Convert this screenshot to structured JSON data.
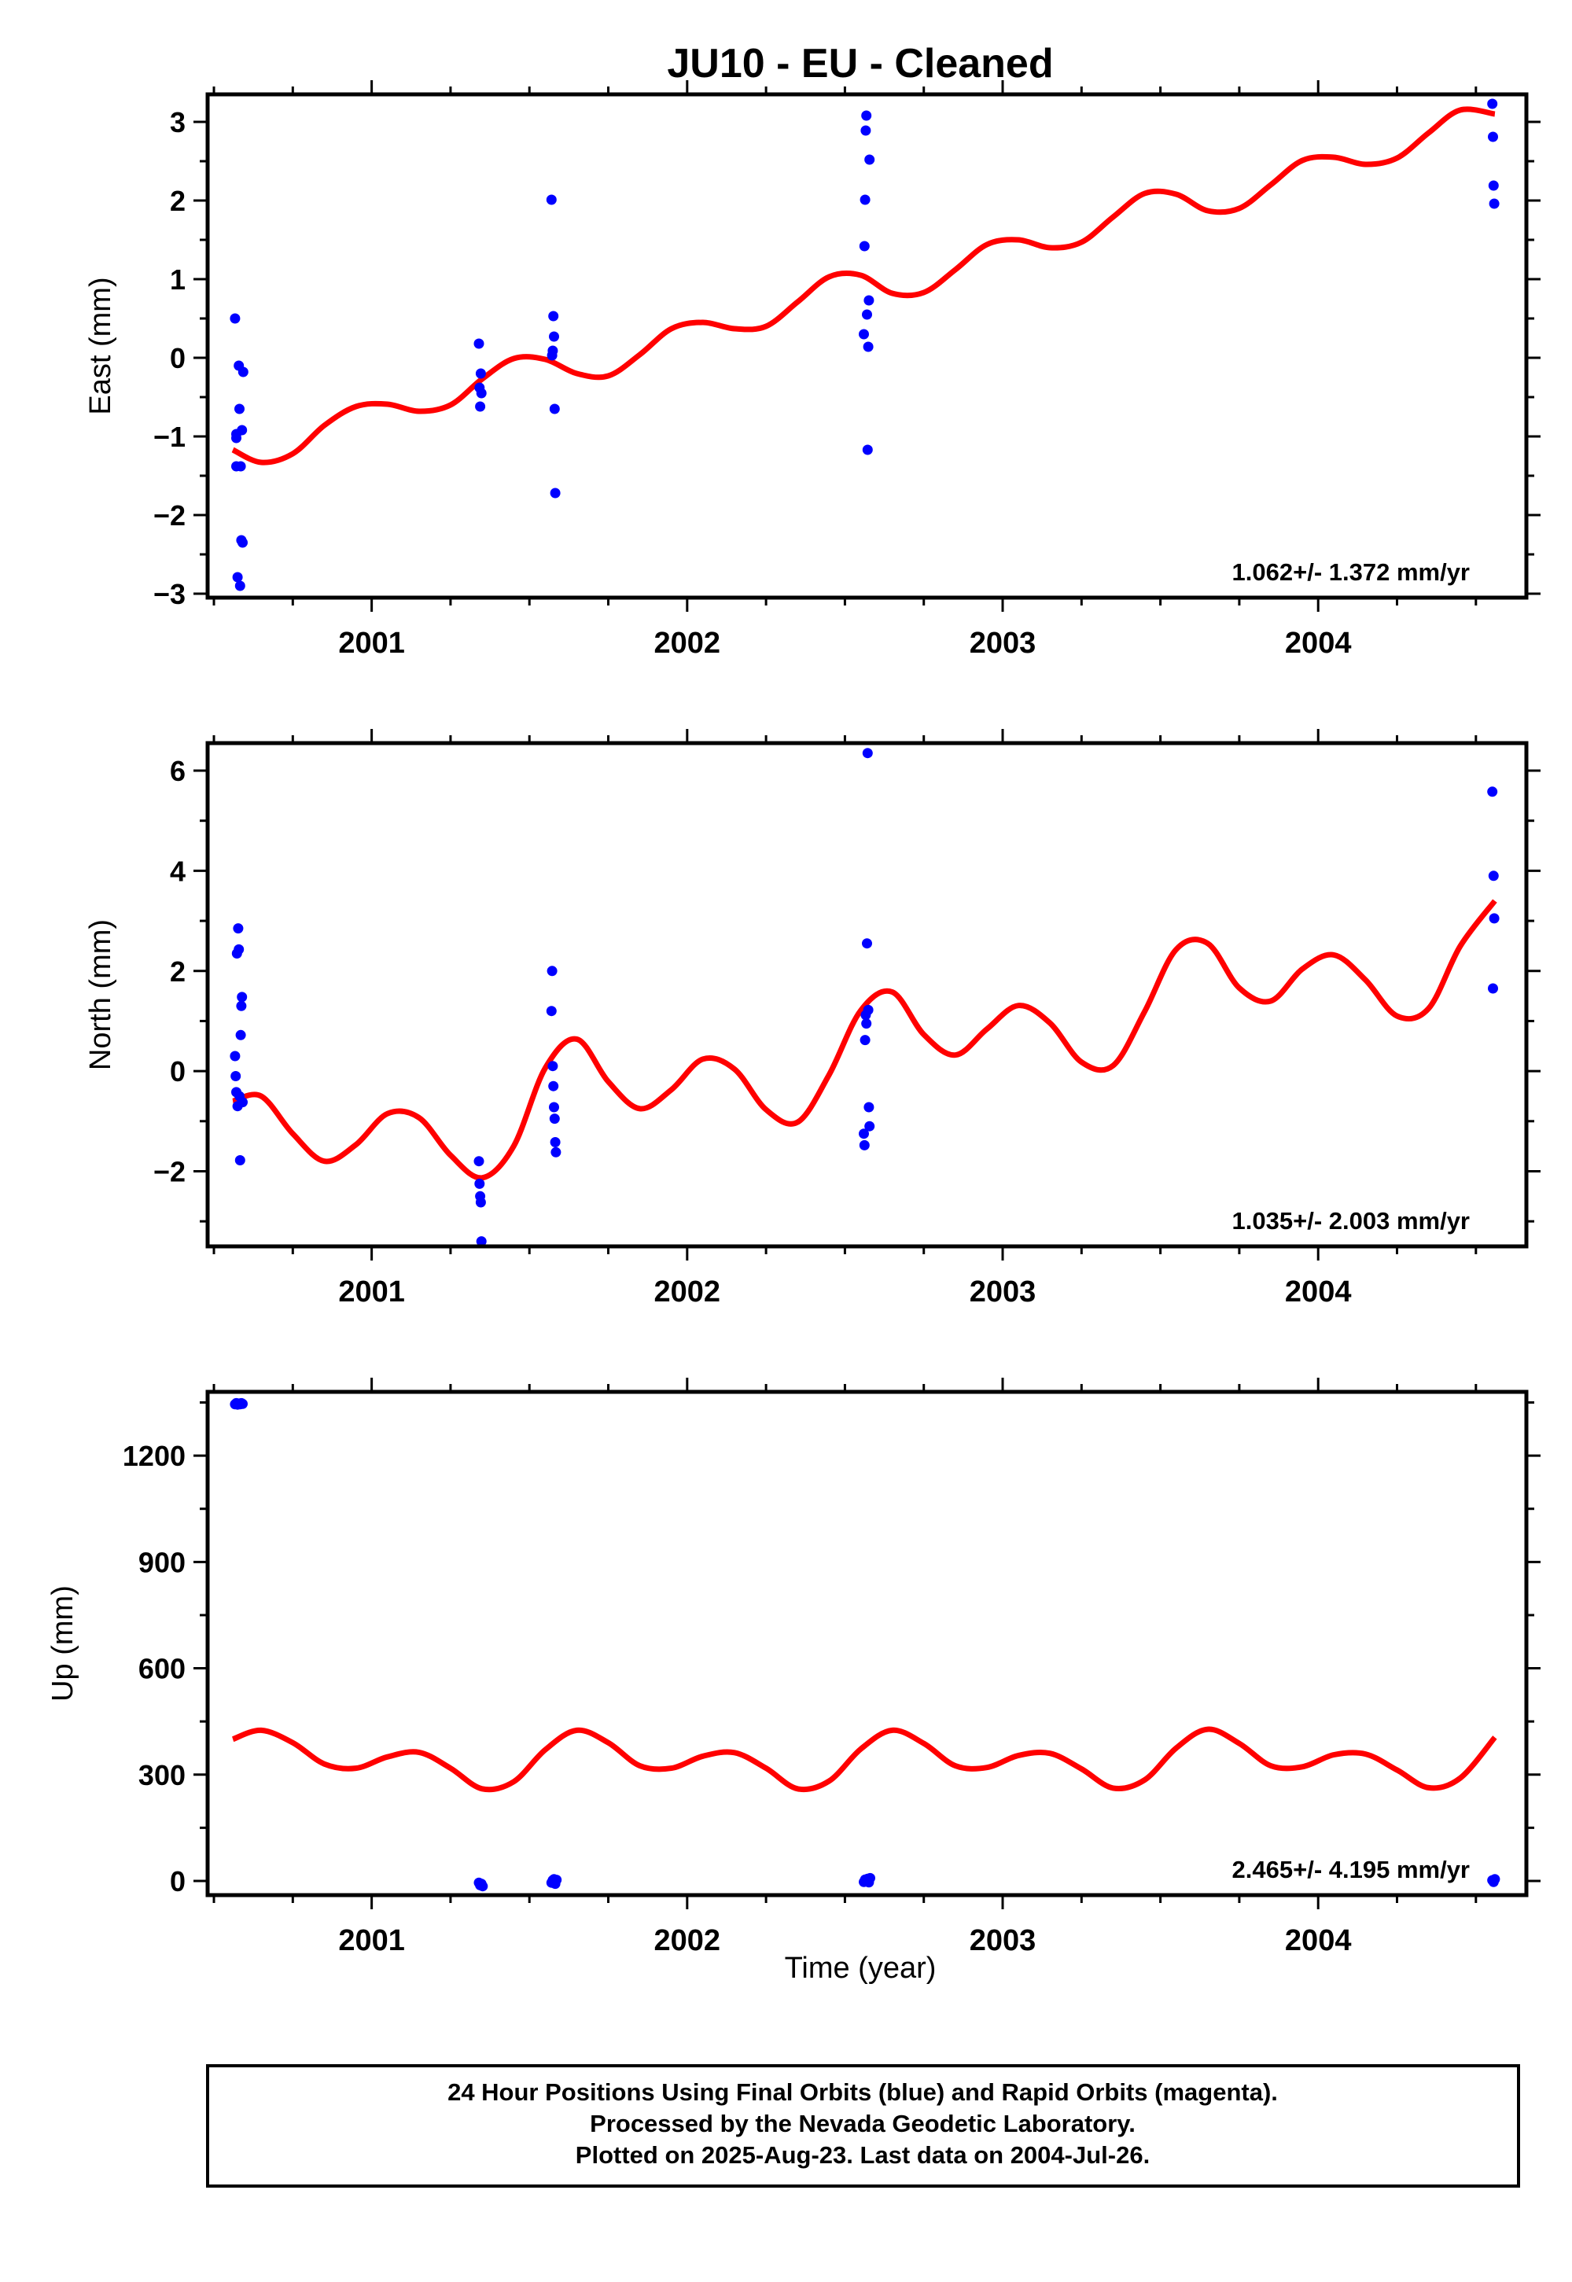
{
  "chart_data": {
    "type": "scatter",
    "title": "JU10  - EU - Cleaned",
    "xlabel": "Time (year)",
    "x_ticks": [
      2001,
      2002,
      2003,
      2004
    ],
    "xlim": [
      2000.48,
      2004.66
    ],
    "colors": {
      "points": "#0000ff",
      "model": "#ff0000",
      "frame": "#000000"
    },
    "grid": false,
    "panels": [
      {
        "ylabel": "East (mm)",
        "ylim": [
          -3.05,
          3.35
        ],
        "y_ticks": [
          -3,
          -2,
          -1,
          0,
          1,
          2,
          3
        ],
        "rate": "1.062+/- 1.372 mm/yr",
        "points": [
          [
            2000.567,
            0.5
          ],
          [
            2000.571,
            -0.97
          ],
          [
            2000.571,
            -1.02
          ],
          [
            2000.571,
            -1.38
          ],
          [
            2000.575,
            -2.79
          ],
          [
            2000.579,
            -0.1
          ],
          [
            2000.581,
            -0.65
          ],
          [
            2000.583,
            -2.9
          ],
          [
            2000.585,
            -1.38
          ],
          [
            2000.587,
            -2.32
          ],
          [
            2000.589,
            -0.92
          ],
          [
            2000.591,
            -2.35
          ],
          [
            2000.593,
            -0.18
          ],
          [
            2001.34,
            0.18
          ],
          [
            2001.342,
            -0.38
          ],
          [
            2001.344,
            -0.62
          ],
          [
            2001.346,
            -0.2
          ],
          [
            2001.348,
            -0.45
          ],
          [
            2001.57,
            2.01
          ],
          [
            2001.572,
            0.03
          ],
          [
            2001.574,
            0.09
          ],
          [
            2001.576,
            0.53
          ],
          [
            2001.578,
            0.27
          ],
          [
            2001.58,
            -0.65
          ],
          [
            2001.582,
            -1.72
          ],
          [
            2002.56,
            0.3
          ],
          [
            2002.562,
            1.42
          ],
          [
            2002.564,
            2.01
          ],
          [
            2002.566,
            2.89
          ],
          [
            2002.568,
            3.08
          ],
          [
            2002.57,
            0.55
          ],
          [
            2002.572,
            -1.17
          ],
          [
            2002.574,
            0.14
          ],
          [
            2002.576,
            0.73
          ],
          [
            2002.578,
            2.52
          ],
          [
            2004.552,
            3.23
          ],
          [
            2004.554,
            2.81
          ],
          [
            2004.556,
            2.19
          ],
          [
            2004.558,
            1.96
          ]
        ],
        "model": [
          [
            2000.56,
            -1.17
          ],
          [
            2000.65,
            -1.33
          ],
          [
            2000.75,
            -1.22
          ],
          [
            2000.85,
            -0.86
          ],
          [
            2000.95,
            -0.62
          ],
          [
            2001.05,
            -0.59
          ],
          [
            2001.15,
            -0.68
          ],
          [
            2001.25,
            -0.6
          ],
          [
            2001.35,
            -0.27
          ],
          [
            2001.45,
            -0.01
          ],
          [
            2001.55,
            -0.02
          ],
          [
            2001.65,
            -0.2
          ],
          [
            2001.75,
            -0.23
          ],
          [
            2001.85,
            0.04
          ],
          [
            2001.95,
            0.37
          ],
          [
            2002.05,
            0.45
          ],
          [
            2002.15,
            0.37
          ],
          [
            2002.25,
            0.4
          ],
          [
            2002.35,
            0.71
          ],
          [
            2002.45,
            1.03
          ],
          [
            2002.55,
            1.05
          ],
          [
            2002.65,
            0.82
          ],
          [
            2002.75,
            0.83
          ],
          [
            2002.85,
            1.12
          ],
          [
            2002.95,
            1.44
          ],
          [
            2003.05,
            1.5
          ],
          [
            2003.15,
            1.4
          ],
          [
            2003.25,
            1.47
          ],
          [
            2003.35,
            1.79
          ],
          [
            2003.45,
            2.09
          ],
          [
            2003.55,
            2.08
          ],
          [
            2003.65,
            1.87
          ],
          [
            2003.75,
            1.9
          ],
          [
            2003.85,
            2.2
          ],
          [
            2003.95,
            2.51
          ],
          [
            2004.05,
            2.55
          ],
          [
            2004.15,
            2.46
          ],
          [
            2004.25,
            2.54
          ],
          [
            2004.35,
            2.86
          ],
          [
            2004.45,
            3.15
          ],
          [
            2004.56,
            3.1
          ]
        ]
      },
      {
        "ylabel": "North (mm)",
        "ylim": [
          -3.5,
          6.55
        ],
        "y_ticks": [
          -2,
          0,
          2,
          4,
          6
        ],
        "rate": "1.035+/- 2.003 mm/yr",
        "points": [
          [
            2000.567,
            0.3
          ],
          [
            2000.569,
            -0.1
          ],
          [
            2000.571,
            -0.42
          ],
          [
            2000.573,
            2.35
          ],
          [
            2000.575,
            -0.7
          ],
          [
            2000.577,
            2.85
          ],
          [
            2000.579,
            2.43
          ],
          [
            2000.581,
            -0.5
          ],
          [
            2000.583,
            -1.78
          ],
          [
            2000.585,
            0.72
          ],
          [
            2000.587,
            1.3
          ],
          [
            2000.589,
            1.48
          ],
          [
            2000.591,
            -0.62
          ],
          [
            2001.34,
            -1.8
          ],
          [
            2001.342,
            -2.25
          ],
          [
            2001.344,
            -2.5
          ],
          [
            2001.346,
            -2.62
          ],
          [
            2001.348,
            -3.4
          ],
          [
            2001.57,
            1.2
          ],
          [
            2001.572,
            2.0
          ],
          [
            2001.574,
            0.1
          ],
          [
            2001.576,
            -0.3
          ],
          [
            2001.578,
            -0.72
          ],
          [
            2001.58,
            -0.95
          ],
          [
            2001.582,
            -1.42
          ],
          [
            2001.584,
            -1.62
          ],
          [
            2002.56,
            -1.25
          ],
          [
            2002.562,
            -1.48
          ],
          [
            2002.564,
            0.62
          ],
          [
            2002.566,
            1.12
          ],
          [
            2002.568,
            0.95
          ],
          [
            2002.57,
            2.55
          ],
          [
            2002.572,
            6.35
          ],
          [
            2002.574,
            1.22
          ],
          [
            2002.576,
            -0.72
          ],
          [
            2002.578,
            -1.1
          ],
          [
            2004.552,
            5.58
          ],
          [
            2004.554,
            1.65
          ],
          [
            2004.556,
            3.9
          ],
          [
            2004.558,
            3.05
          ]
        ],
        "model": [
          [
            2000.56,
            -0.6
          ],
          [
            2000.65,
            -0.5
          ],
          [
            2000.75,
            -1.25
          ],
          [
            2000.85,
            -1.8
          ],
          [
            2000.95,
            -1.47
          ],
          [
            2001.05,
            -0.85
          ],
          [
            2001.15,
            -0.93
          ],
          [
            2001.25,
            -1.68
          ],
          [
            2001.35,
            -2.13
          ],
          [
            2001.45,
            -1.5
          ],
          [
            2001.55,
            0.06
          ],
          [
            2001.65,
            0.64
          ],
          [
            2001.75,
            -0.21
          ],
          [
            2001.85,
            -0.75
          ],
          [
            2001.95,
            -0.37
          ],
          [
            2002.05,
            0.24
          ],
          [
            2002.15,
            0.04
          ],
          [
            2002.25,
            -0.77
          ],
          [
            2002.35,
            -1.02
          ],
          [
            2002.45,
            -0.07
          ],
          [
            2002.55,
            1.21
          ],
          [
            2002.65,
            1.58
          ],
          [
            2002.75,
            0.73
          ],
          [
            2002.85,
            0.32
          ],
          [
            2002.95,
            0.84
          ],
          [
            2003.05,
            1.31
          ],
          [
            2003.15,
            0.96
          ],
          [
            2003.25,
            0.18
          ],
          [
            2003.35,
            0.11
          ],
          [
            2003.45,
            1.19
          ],
          [
            2003.55,
            2.43
          ],
          [
            2003.65,
            2.55
          ],
          [
            2003.75,
            1.66
          ],
          [
            2003.85,
            1.4
          ],
          [
            2003.95,
            2.04
          ],
          [
            2004.05,
            2.32
          ],
          [
            2004.15,
            1.82
          ],
          [
            2004.25,
            1.1
          ],
          [
            2004.35,
            1.25
          ],
          [
            2004.45,
            2.49
          ],
          [
            2004.56,
            3.4
          ]
        ]
      },
      {
        "ylabel": "Up (mm)",
        "ylim": [
          -40,
          1380
        ],
        "y_ticks": [
          0,
          300,
          600,
          900,
          1200
        ],
        "rate": "2.465+/- 4.195 mm/yr",
        "points": [
          [
            2000.567,
            1345
          ],
          [
            2000.571,
            1348
          ],
          [
            2000.575,
            1344
          ],
          [
            2000.579,
            1347
          ],
          [
            2000.583,
            1345
          ],
          [
            2000.587,
            1348
          ],
          [
            2000.591,
            1346
          ],
          [
            2001.34,
            -5
          ],
          [
            2001.344,
            -12
          ],
          [
            2001.348,
            -8
          ],
          [
            2001.352,
            -15
          ],
          [
            2001.57,
            -5
          ],
          [
            2001.574,
            2
          ],
          [
            2001.578,
            5
          ],
          [
            2001.582,
            -8
          ],
          [
            2001.586,
            3
          ],
          [
            2002.56,
            -3
          ],
          [
            2002.564,
            4
          ],
          [
            2002.568,
            0
          ],
          [
            2002.572,
            6
          ],
          [
            2002.576,
            -4
          ],
          [
            2002.58,
            8
          ],
          [
            2004.552,
            2
          ],
          [
            2004.556,
            -3
          ],
          [
            2004.56,
            5
          ]
        ],
        "model": [
          [
            2000.56,
            400
          ],
          [
            2000.65,
            425
          ],
          [
            2000.75,
            390
          ],
          [
            2000.85,
            330
          ],
          [
            2000.95,
            318
          ],
          [
            2001.05,
            350
          ],
          [
            2001.15,
            363
          ],
          [
            2001.25,
            318
          ],
          [
            2001.35,
            260
          ],
          [
            2001.45,
            280
          ],
          [
            2001.55,
            370
          ],
          [
            2001.65,
            425
          ],
          [
            2001.75,
            390
          ],
          [
            2001.85,
            325
          ],
          [
            2001.95,
            318
          ],
          [
            2002.05,
            352
          ],
          [
            2002.15,
            362
          ],
          [
            2002.25,
            318
          ],
          [
            2002.35,
            260
          ],
          [
            2002.45,
            282
          ],
          [
            2002.55,
            372
          ],
          [
            2002.65,
            425
          ],
          [
            2002.75,
            388
          ],
          [
            2002.85,
            325
          ],
          [
            2002.95,
            320
          ],
          [
            2003.05,
            354
          ],
          [
            2003.15,
            360
          ],
          [
            2003.25,
            316
          ],
          [
            2003.35,
            262
          ],
          [
            2003.45,
            285
          ],
          [
            2003.55,
            375
          ],
          [
            2003.65,
            428
          ],
          [
            2003.75,
            388
          ],
          [
            2003.85,
            325
          ],
          [
            2003.95,
            322
          ],
          [
            2004.05,
            356
          ],
          [
            2004.15,
            358
          ],
          [
            2004.25,
            313
          ],
          [
            2004.35,
            263
          ],
          [
            2004.45,
            290
          ],
          [
            2004.56,
            405
          ]
        ]
      }
    ]
  },
  "footer": {
    "line1": "24 Hour Positions Using Final Orbits (blue) and Rapid Orbits (magenta).",
    "line2": "Processed by the Nevada Geodetic Laboratory.",
    "line3": "Plotted on 2025-Aug-23. Last data on 2004-Jul-26."
  }
}
